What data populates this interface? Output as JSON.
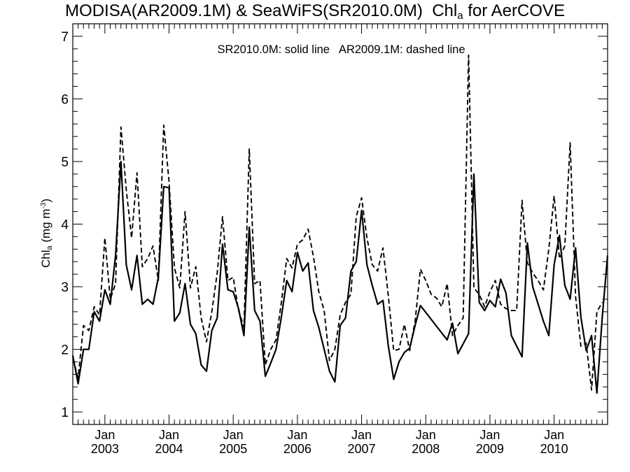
{
  "chart_data": {
    "type": "line",
    "title": {
      "pre": "MODISA(AR2009.1M) & SeaWiFS(SR2010.0M)  Chl",
      "sub": "a",
      "post": " for AerCOVE"
    },
    "annotation": "SR2010.0M: solid line   AR2009.1M: dashed line",
    "ylabel": {
      "pre": "Chl",
      "sub": "a",
      "mid": " (mg m",
      "sup": "-3",
      "post": ")"
    },
    "xaxis": {
      "range": [
        "2002-07",
        "2010-11"
      ],
      "tick_labels": [
        {
          "month": "Jan",
          "year": "2003",
          "date": "2003-01"
        },
        {
          "month": "Jan",
          "year": "2004",
          "date": "2004-01"
        },
        {
          "month": "Jan",
          "year": "2005",
          "date": "2005-01"
        },
        {
          "month": "Jan",
          "year": "2006",
          "date": "2006-01"
        },
        {
          "month": "Jan",
          "year": "2007",
          "date": "2007-01"
        },
        {
          "month": "Jan",
          "year": "2008",
          "date": "2008-01"
        },
        {
          "month": "Jan",
          "year": "2009",
          "date": "2009-01"
        },
        {
          "month": "Jan",
          "year": "2010",
          "date": "2010-01"
        }
      ]
    },
    "ylim": [
      0.8,
      7.2
    ],
    "yticks": [
      "1",
      "2",
      "3",
      "4",
      "5",
      "6",
      "7"
    ],
    "series": [
      {
        "style": "solid",
        "points": [
          [
            "2002-07",
            1.9
          ],
          [
            "2002-08",
            1.45
          ],
          [
            "2002-09",
            2.0
          ],
          [
            "2002-10",
            2.0
          ],
          [
            "2002-11",
            2.6
          ],
          [
            "2002-12",
            2.45
          ],
          [
            "2003-01",
            2.95
          ],
          [
            "2003-02",
            2.72
          ],
          [
            "2003-03",
            3.5
          ],
          [
            "2003-04",
            5.0
          ],
          [
            "2003-05",
            3.35
          ],
          [
            "2003-06",
            2.95
          ],
          [
            "2003-07",
            3.5
          ],
          [
            "2003-08",
            2.72
          ],
          [
            "2003-09",
            2.8
          ],
          [
            "2003-10",
            2.72
          ],
          [
            "2003-11",
            3.15
          ],
          [
            "2003-12",
            4.6
          ],
          [
            "2004-01",
            4.58
          ],
          [
            "2004-02",
            2.45
          ],
          [
            "2004-03",
            2.58
          ],
          [
            "2004-04",
            3.05
          ],
          [
            "2004-05",
            2.4
          ],
          [
            "2004-06",
            2.25
          ],
          [
            "2004-07",
            1.75
          ],
          [
            "2004-08",
            1.65
          ],
          [
            "2004-09",
            2.3
          ],
          [
            "2004-10",
            2.5
          ],
          [
            "2004-11",
            3.68
          ],
          [
            "2004-12",
            2.95
          ],
          [
            "2005-01",
            2.92
          ],
          [
            "2005-02",
            2.65
          ],
          [
            "2005-03",
            2.22
          ],
          [
            "2005-04",
            3.95
          ],
          [
            "2005-05",
            2.62
          ],
          [
            "2005-06",
            2.45
          ],
          [
            "2005-07",
            1.57
          ],
          [
            "2005-08",
            1.78
          ],
          [
            "2005-09",
            2.0
          ],
          [
            "2005-10",
            2.52
          ],
          [
            "2005-11",
            3.1
          ],
          [
            "2005-12",
            2.92
          ],
          [
            "2006-01",
            3.55
          ],
          [
            "2006-02",
            3.25
          ],
          [
            "2006-03",
            3.38
          ],
          [
            "2006-04",
            2.62
          ],
          [
            "2006-05",
            2.35
          ],
          [
            "2006-06",
            2.0
          ],
          [
            "2006-07",
            1.65
          ],
          [
            "2006-08",
            1.48
          ],
          [
            "2006-09",
            2.38
          ],
          [
            "2006-10",
            2.5
          ],
          [
            "2006-11",
            3.25
          ],
          [
            "2006-12",
            3.4
          ],
          [
            "2007-01",
            4.22
          ],
          [
            "2007-02",
            3.35
          ],
          [
            "2007-03",
            3.02
          ],
          [
            "2007-04",
            2.72
          ],
          [
            "2007-05",
            2.78
          ],
          [
            "2007-06",
            2.05
          ],
          [
            "2007-07",
            1.52
          ],
          [
            "2007-08",
            1.8
          ],
          [
            "2007-09",
            1.95
          ],
          [
            "2007-10",
            2.02
          ],
          [
            "2007-11",
            2.38
          ],
          [
            "2007-12",
            2.7
          ],
          [
            "2008-05",
            2.15
          ],
          [
            "2008-06",
            2.42
          ],
          [
            "2008-07",
            1.93
          ],
          [
            "2008-09",
            2.25
          ],
          [
            "2008-10",
            4.8
          ],
          [
            "2008-11",
            2.75
          ],
          [
            "2008-12",
            2.62
          ],
          [
            "2009-01",
            2.78
          ],
          [
            "2009-02",
            2.68
          ],
          [
            "2009-03",
            3.12
          ],
          [
            "2009-04",
            2.9
          ],
          [
            "2009-05",
            2.22
          ],
          [
            "2009-07",
            1.88
          ],
          [
            "2009-08",
            3.7
          ],
          [
            "2009-09",
            3.0
          ],
          [
            "2009-11",
            2.45
          ],
          [
            "2009-12",
            2.22
          ],
          [
            "2010-01",
            3.35
          ],
          [
            "2010-02",
            3.82
          ],
          [
            "2010-03",
            3.02
          ],
          [
            "2010-04",
            2.8
          ],
          [
            "2010-05",
            3.62
          ],
          [
            "2010-06",
            2.52
          ],
          [
            "2010-07",
            1.98
          ],
          [
            "2010-08",
            2.22
          ],
          [
            "2010-09",
            1.3
          ],
          [
            "2010-10",
            2.52
          ],
          [
            "2010-11",
            3.5
          ]
        ]
      },
      {
        "style": "dashed",
        "points": [
          [
            "2002-07",
            1.85
          ],
          [
            "2002-08",
            1.55
          ],
          [
            "2002-09",
            2.38
          ],
          [
            "2002-10",
            2.3
          ],
          [
            "2002-11",
            2.68
          ],
          [
            "2002-12",
            2.55
          ],
          [
            "2003-01",
            3.78
          ],
          [
            "2003-02",
            2.8
          ],
          [
            "2003-03",
            3.05
          ],
          [
            "2003-04",
            5.55
          ],
          [
            "2003-05",
            4.55
          ],
          [
            "2003-06",
            3.78
          ],
          [
            "2003-07",
            4.82
          ],
          [
            "2003-08",
            3.32
          ],
          [
            "2003-09",
            3.45
          ],
          [
            "2003-10",
            3.65
          ],
          [
            "2003-11",
            3.1
          ],
          [
            "2003-12",
            5.58
          ],
          [
            "2004-01",
            4.68
          ],
          [
            "2004-02",
            3.3
          ],
          [
            "2004-03",
            2.98
          ],
          [
            "2004-04",
            4.2
          ],
          [
            "2004-05",
            2.98
          ],
          [
            "2004-06",
            3.32
          ],
          [
            "2004-07",
            2.5
          ],
          [
            "2004-08",
            2.12
          ],
          [
            "2004-09",
            2.6
          ],
          [
            "2004-10",
            3.22
          ],
          [
            "2004-11",
            4.12
          ],
          [
            "2004-12",
            3.1
          ],
          [
            "2005-01",
            3.15
          ],
          [
            "2005-02",
            2.62
          ],
          [
            "2005-03",
            2.35
          ],
          [
            "2005-04",
            5.2
          ],
          [
            "2005-05",
            3.05
          ],
          [
            "2005-06",
            3.1
          ],
          [
            "2005-07",
            1.75
          ],
          [
            "2005-08",
            2.0
          ],
          [
            "2005-09",
            2.15
          ],
          [
            "2005-10",
            2.75
          ],
          [
            "2005-11",
            3.45
          ],
          [
            "2005-12",
            3.3
          ],
          [
            "2006-01",
            3.68
          ],
          [
            "2006-02",
            3.75
          ],
          [
            "2006-03",
            3.92
          ],
          [
            "2006-04",
            3.48
          ],
          [
            "2006-05",
            2.92
          ],
          [
            "2006-06",
            2.62
          ],
          [
            "2006-07",
            1.82
          ],
          [
            "2006-08",
            2.0
          ],
          [
            "2006-09",
            2.55
          ],
          [
            "2006-10",
            2.75
          ],
          [
            "2006-11",
            2.88
          ],
          [
            "2006-12",
            4.12
          ],
          [
            "2007-01",
            4.42
          ],
          [
            "2007-02",
            3.78
          ],
          [
            "2007-03",
            3.35
          ],
          [
            "2007-04",
            3.25
          ],
          [
            "2007-05",
            3.62
          ],
          [
            "2007-06",
            2.85
          ],
          [
            "2007-07",
            1.98
          ],
          [
            "2007-08",
            2.0
          ],
          [
            "2007-09",
            2.4
          ],
          [
            "2007-10",
            1.98
          ],
          [
            "2007-11",
            2.45
          ],
          [
            "2007-12",
            3.28
          ],
          [
            "2008-01",
            3.1
          ],
          [
            "2008-02",
            2.88
          ],
          [
            "2008-03",
            2.82
          ],
          [
            "2008-04",
            2.68
          ],
          [
            "2008-05",
            3.05
          ],
          [
            "2008-06",
            2.22
          ],
          [
            "2008-07",
            2.38
          ],
          [
            "2008-08",
            2.5
          ],
          [
            "2008-09",
            6.7
          ],
          [
            "2008-10",
            2.98
          ],
          [
            "2008-11",
            2.88
          ],
          [
            "2008-12",
            2.68
          ],
          [
            "2009-01",
            2.92
          ],
          [
            "2009-02",
            3.1
          ],
          [
            "2009-03",
            2.72
          ],
          [
            "2009-04",
            2.65
          ],
          [
            "2009-05",
            2.62
          ],
          [
            "2009-06",
            2.62
          ],
          [
            "2009-07",
            4.38
          ],
          [
            "2009-08",
            3.38
          ],
          [
            "2009-09",
            3.22
          ],
          [
            "2009-10",
            3.1
          ],
          [
            "2009-11",
            2.95
          ],
          [
            "2009-12",
            3.6
          ],
          [
            "2010-01",
            4.45
          ],
          [
            "2010-02",
            3.45
          ],
          [
            "2010-03",
            3.65
          ],
          [
            "2010-04",
            5.3
          ],
          [
            "2010-05",
            2.85
          ],
          [
            "2010-06",
            2.05
          ],
          [
            "2010-07",
            2.1
          ],
          [
            "2010-08",
            1.35
          ],
          [
            "2010-09",
            2.6
          ],
          [
            "2010-10",
            2.75
          ]
        ]
      }
    ]
  }
}
